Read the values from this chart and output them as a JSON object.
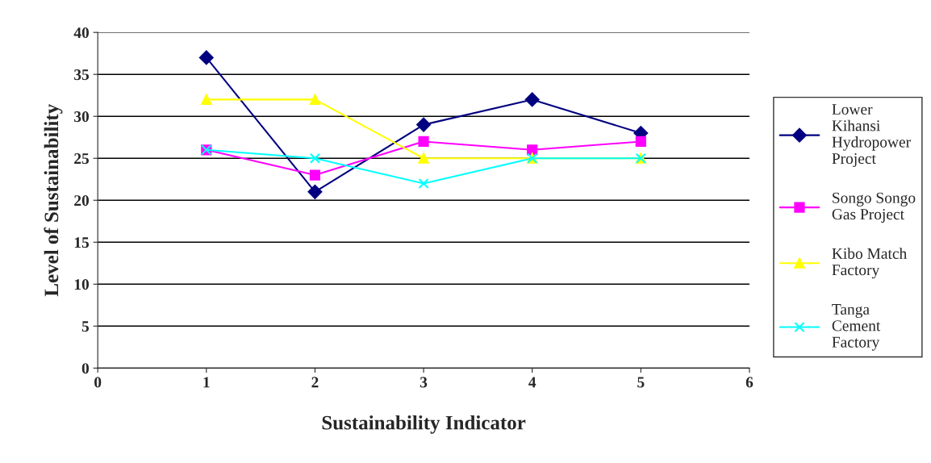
{
  "chart_data": {
    "type": "line",
    "xlabel": "Sustainability Indicator",
    "ylabel": "Level of Sustainability",
    "x": [
      1,
      2,
      3,
      4,
      5
    ],
    "series": [
      {
        "name": "Lower Kihansi Hydropower Project",
        "color": "#000080",
        "marker": "diamond",
        "values": [
          37,
          21,
          29,
          32,
          28
        ]
      },
      {
        "name": "Songo Songo Gas Project",
        "color": "#ff00ff",
        "marker": "square",
        "values": [
          26,
          23,
          27,
          26,
          27
        ]
      },
      {
        "name": "Kibo Match Factory",
        "color": "#ffff00",
        "marker": "triangle",
        "values": [
          32,
          32,
          25,
          25,
          25
        ]
      },
      {
        "name": "Tanga Cement Factory",
        "color": "#00ffff",
        "marker": "cross",
        "values": [
          26,
          25,
          22,
          25,
          25
        ]
      }
    ],
    "xlim": [
      0,
      6
    ],
    "xticks": [
      0,
      1,
      2,
      3,
      4,
      5,
      6
    ],
    "ylim": [
      0,
      40
    ],
    "yticks": [
      0,
      5,
      10,
      15,
      20,
      25,
      30,
      35,
      40
    ],
    "grid": "y",
    "legend": "right",
    "line_style": "solid"
  }
}
